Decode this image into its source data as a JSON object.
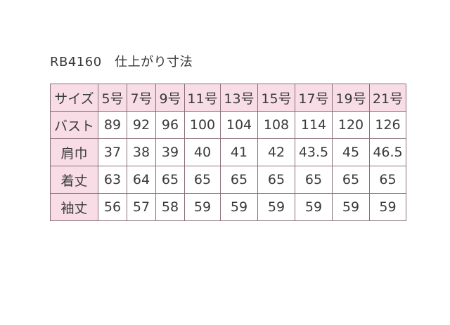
{
  "title": "RB4160　仕上がり寸法",
  "header": [
    "サイズ",
    "5号",
    "7号",
    "9号",
    "11号",
    "13号",
    "15号",
    "17号",
    "19号",
    "21号"
  ],
  "rows": [
    [
      "バスト",
      "89",
      "92",
      "96",
      "100",
      "104",
      "108",
      "114",
      "120",
      "126"
    ],
    [
      "肩巾",
      "37",
      "38",
      "39",
      "40",
      "41",
      "42",
      "43.5",
      "45",
      "46.5"
    ],
    [
      "着丈",
      "63",
      "64",
      "65",
      "65",
      "65",
      "65",
      "65",
      "65",
      "65"
    ],
    [
      "袖丈",
      "56",
      "57",
      "58",
      "59",
      "59",
      "59",
      "59",
      "59",
      "59"
    ]
  ],
  "colors": {
    "header_bg": "#f8dde7",
    "border": "#8a6f78"
  }
}
